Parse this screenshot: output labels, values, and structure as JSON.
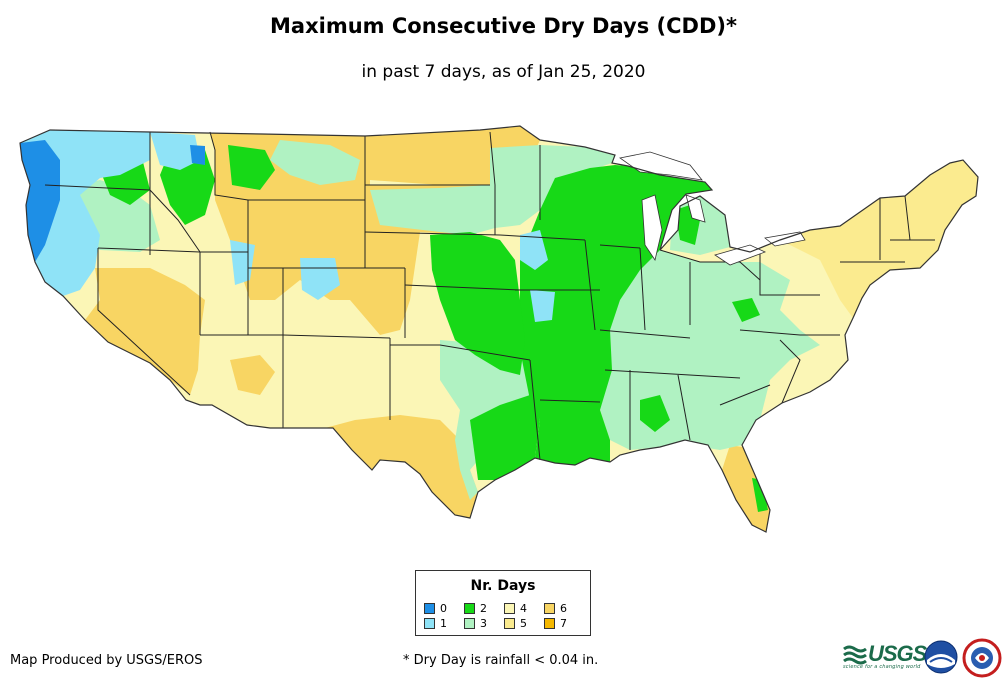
{
  "map": {
    "title": "Maximum Consecutive Dry Days (CDD)*",
    "subtitle": "in past 7 days, as of Jan 25, 2020",
    "region": "Contiguous United States",
    "legend_title": "Nr. Days",
    "legend": [
      {
        "label": "0",
        "color": "#1e8fe6"
      },
      {
        "label": "1",
        "color": "#8fe3f7"
      },
      {
        "label": "2",
        "color": "#17d917"
      },
      {
        "label": "3",
        "color": "#b0f2c2"
      },
      {
        "label": "4",
        "color": "#fbf6b6"
      },
      {
        "label": "5",
        "color": "#fbeb8f"
      },
      {
        "label": "6",
        "color": "#f8d563"
      },
      {
        "label": "7",
        "color": "#f5b800"
      }
    ],
    "colors": {
      "state_borders": "#222222",
      "coast": "#333333"
    }
  },
  "footer": {
    "credit": "Map Produced by USGS/EROS",
    "note": "* Dry Day is rainfall < 0.04 in."
  },
  "logos": {
    "usgs_text": "USGS",
    "usgs_tagline": "science for a changing world"
  }
}
